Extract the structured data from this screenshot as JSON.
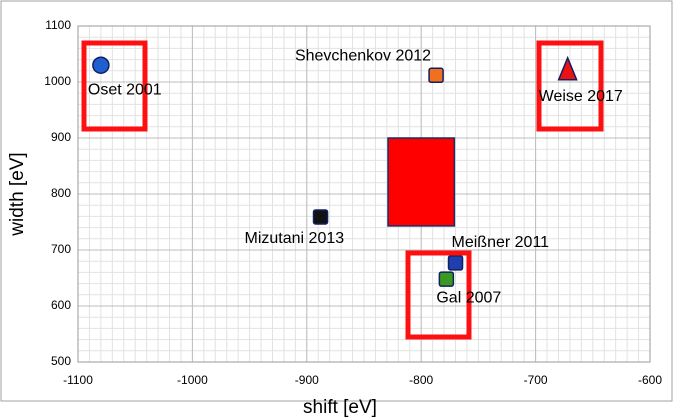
{
  "chart_data": {
    "type": "scatter",
    "x_label": "shift [eV]",
    "y_label": "width [eV]",
    "xlim": [
      -1100,
      -600
    ],
    "xticks": [
      -1100,
      -1000,
      -900,
      -800,
      -700,
      -600
    ],
    "ylim": [
      500,
      1100
    ],
    "yticks": [
      500,
      600,
      700,
      800,
      900,
      1000,
      1100
    ],
    "grid": true,
    "points": [
      {
        "name": "Oset 2001",
        "x": -1080,
        "y": 1030,
        "marker": "circle",
        "color": "#1f5fd0"
      },
      {
        "name": "Shevchenkov 2012",
        "x": -787,
        "y": 1012,
        "marker": "square",
        "color": "#f07020"
      },
      {
        "name": "Weise 2017",
        "x": -672,
        "y": 1020,
        "marker": "triangle",
        "color": "#ee1111"
      },
      {
        "name": "Mizutani 2013",
        "x": -888,
        "y": 759,
        "marker": "square",
        "color": "#111111"
      },
      {
        "name": "Meißner 2011",
        "x": -770,
        "y": 677,
        "marker": "square",
        "color": "#1f3fb0"
      },
      {
        "name": "Gal 2007",
        "x": -778,
        "y": 648,
        "marker": "square",
        "color": "#3a9a20"
      }
    ],
    "region": {
      "x": [
        -829,
        -771
      ],
      "y": [
        743,
        900
      ],
      "color": "#ff0000"
    }
  }
}
